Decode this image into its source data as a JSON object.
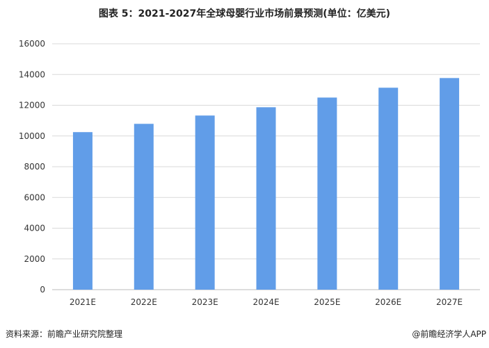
{
  "chart_data": {
    "type": "bar",
    "title": "图表 5：2021-2027年全球母婴行业市场前景预测(单位：亿美元)",
    "categories": [
      "2021E",
      "2022E",
      "2023E",
      "2024E",
      "2025E",
      "2026E",
      "2027E"
    ],
    "values": [
      10250,
      10790,
      11330,
      11870,
      12500,
      13140,
      13770
    ],
    "yticks": [
      "0",
      "2000",
      "4000",
      "6000",
      "8000",
      "10000",
      "12000",
      "14000",
      "16000"
    ],
    "ylim": [
      0,
      16000
    ],
    "grid": true,
    "bar_color": "#619DE8"
  },
  "footer": {
    "source": "资料来源：前瞻产业研究院整理",
    "brand": "@前瞻经济学人APP"
  },
  "watermark": "前瞻产业研究院"
}
